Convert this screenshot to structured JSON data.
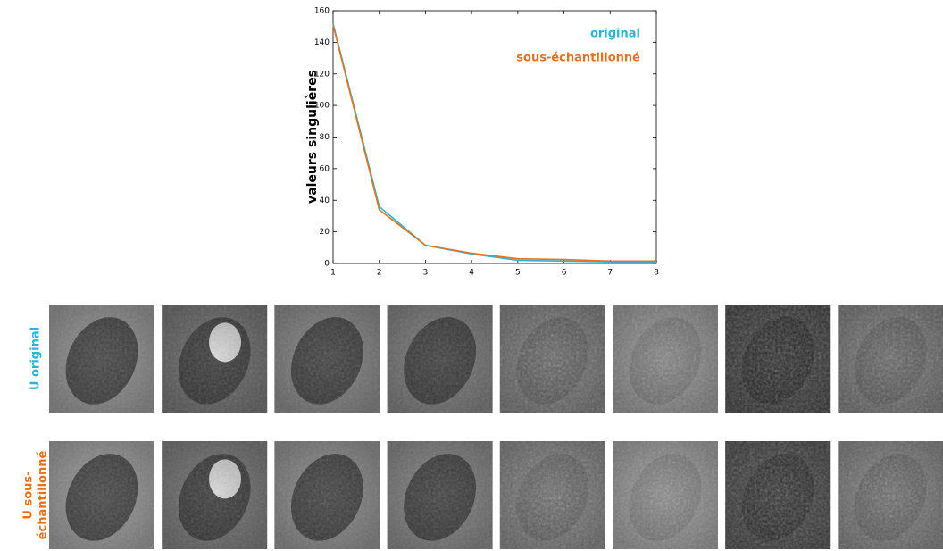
{
  "chart_data": {
    "type": "line",
    "x": [
      1,
      2,
      3,
      4,
      5,
      6,
      7,
      8
    ],
    "xlim": [
      1,
      8
    ],
    "xticks": [
      1,
      2,
      3,
      4,
      5,
      6,
      7,
      8
    ],
    "ylim": [
      0,
      160
    ],
    "yticks": [
      0,
      20,
      40,
      60,
      80,
      100,
      120,
      140,
      160
    ],
    "ylabel": "valeurs singulières",
    "legend": "upper right",
    "series": [
      {
        "name": "original",
        "color": "#29b6d6",
        "values": [
          152,
          36,
          11.5,
          6,
          2,
          1.5,
          1,
          1
        ]
      },
      {
        "name": "sous-échantillonné",
        "color": "#e8711c",
        "values": [
          151,
          34,
          11.5,
          6.5,
          3,
          2.5,
          1.5,
          1.5
        ]
      }
    ]
  },
  "image_grid": {
    "columns": 8,
    "rows": [
      {
        "label_lines": [
          "U original"
        ],
        "color": "#29b6d6"
      },
      {
        "label_lines": [
          "U sous-",
          "échantillonné"
        ],
        "color": "#e8711c"
      }
    ]
  }
}
